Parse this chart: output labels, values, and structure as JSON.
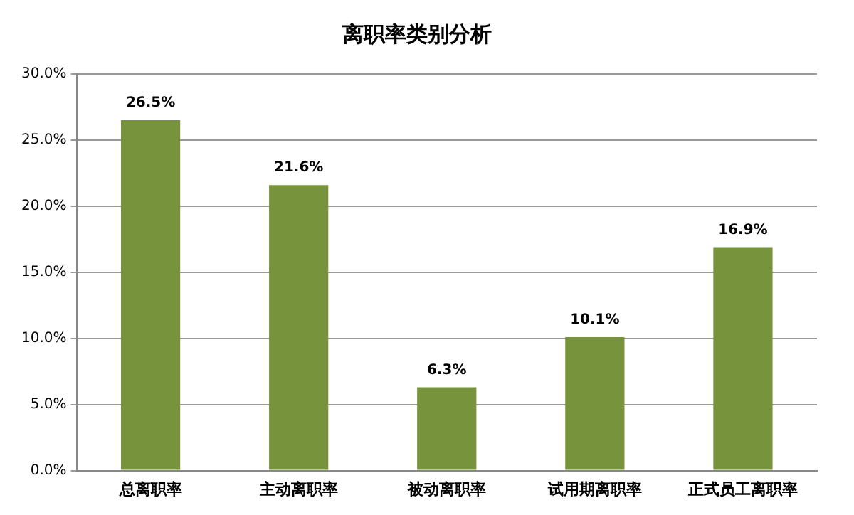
{
  "chart_data": {
    "type": "bar",
    "title": "离职率类别分析",
    "categories": [
      "总离职率",
      "主动离职率",
      "被动离职率",
      "试用期离职率",
      "正式员工离职率"
    ],
    "values": [
      26.5,
      21.6,
      6.3,
      10.1,
      16.9
    ],
    "value_labels": [
      "26.5%",
      "21.6%",
      "6.3%",
      "10.1%",
      "16.9%"
    ],
    "color": "#77933c",
    "ylim": [
      0,
      30
    ],
    "yticks": [
      {
        "value": 0,
        "label": "0.0%"
      },
      {
        "value": 5,
        "label": "5.0%"
      },
      {
        "value": 10,
        "label": "10.0%"
      },
      {
        "value": 15,
        "label": "15.0%"
      },
      {
        "value": 20,
        "label": "20.0%"
      },
      {
        "value": 25,
        "label": "25.0%"
      },
      {
        "value": 30,
        "label": "30.0%"
      }
    ],
    "grid": "y"
  }
}
